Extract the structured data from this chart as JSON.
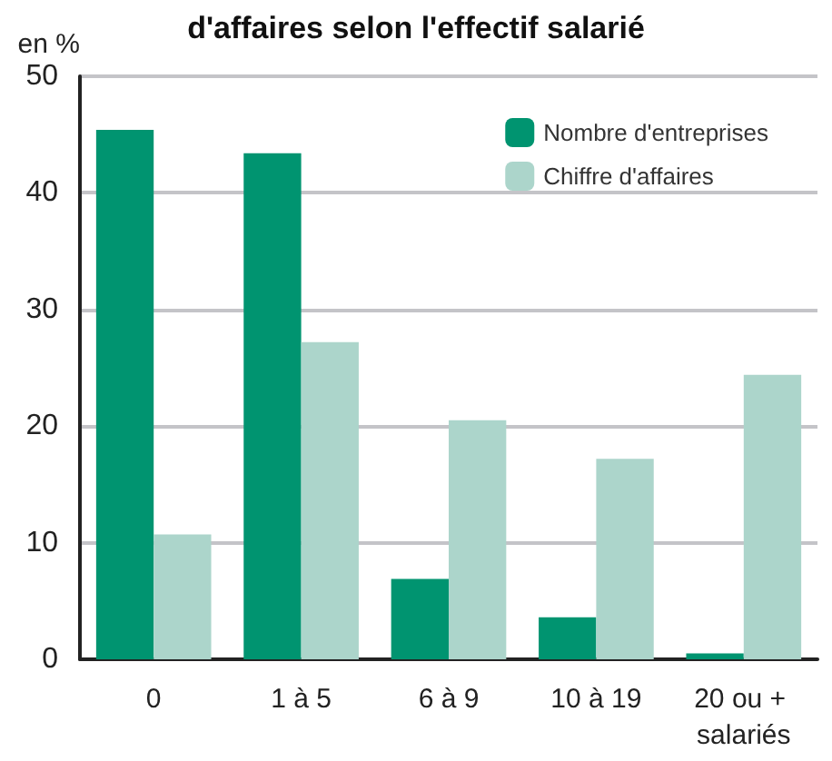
{
  "chart_data": {
    "type": "bar",
    "title": "d'affaires selon l'effectif salarié",
    "ylabel": "en %",
    "categories": [
      "0",
      "1 à 5",
      "6 à 9",
      "10 à 19",
      "20 ou + salariés"
    ],
    "series": [
      {
        "name": "Nombre d'entreprises",
        "color": "#009470",
        "values": [
          45.4,
          43.4,
          6.9,
          3.6,
          0.5
        ]
      },
      {
        "name": "Chiffre d'affaires",
        "color": "#acd5cb",
        "values": [
          10.7,
          27.2,
          20.5,
          17.2,
          24.4
        ]
      }
    ],
    "ylim": [
      0,
      50
    ],
    "yticks": [
      0,
      10,
      20,
      30,
      40,
      50
    ],
    "grid": "y",
    "legend": "top right"
  }
}
